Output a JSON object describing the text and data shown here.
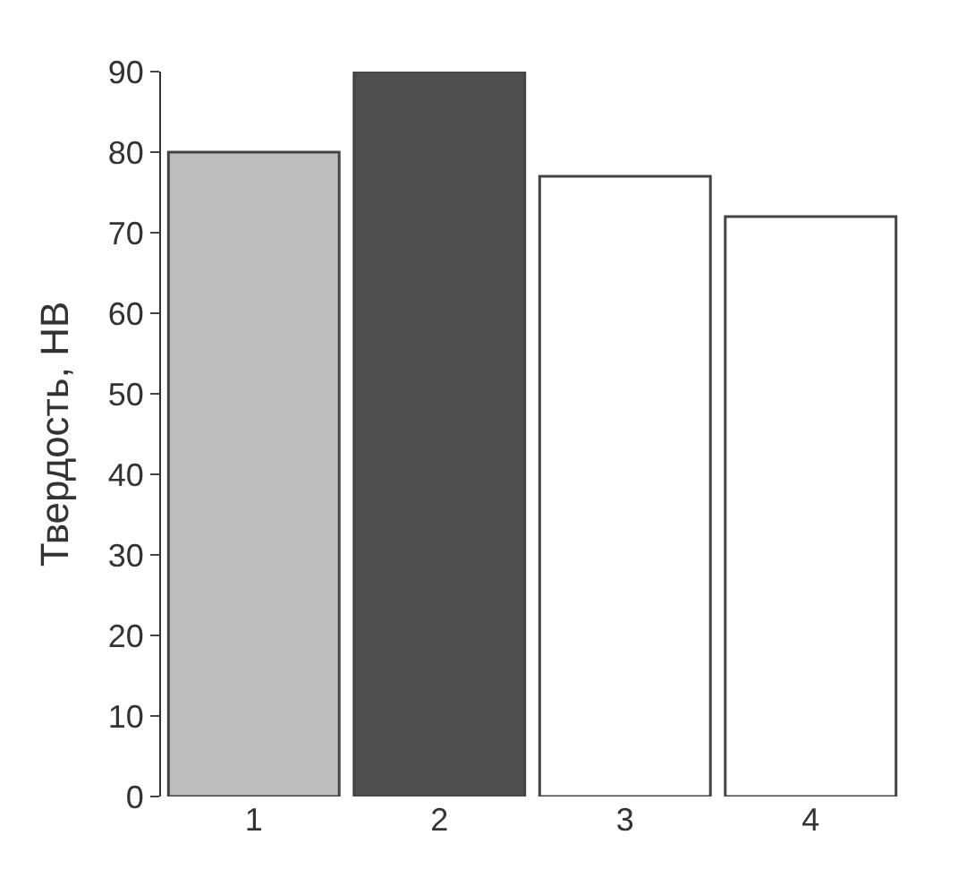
{
  "chart_data": {
    "type": "bar",
    "ylabel": "Твердость, НВ",
    "categories": [
      "1",
      "2",
      "3",
      "4"
    ],
    "values": [
      80,
      90,
      77,
      72
    ],
    "colors": [
      "#bdbdbd",
      "#505050",
      "#ffffff",
      "#ffffff"
    ],
    "ylim": [
      0,
      90
    ],
    "yticks": [
      0,
      10,
      20,
      30,
      40,
      50,
      60,
      70,
      80,
      90
    ]
  }
}
